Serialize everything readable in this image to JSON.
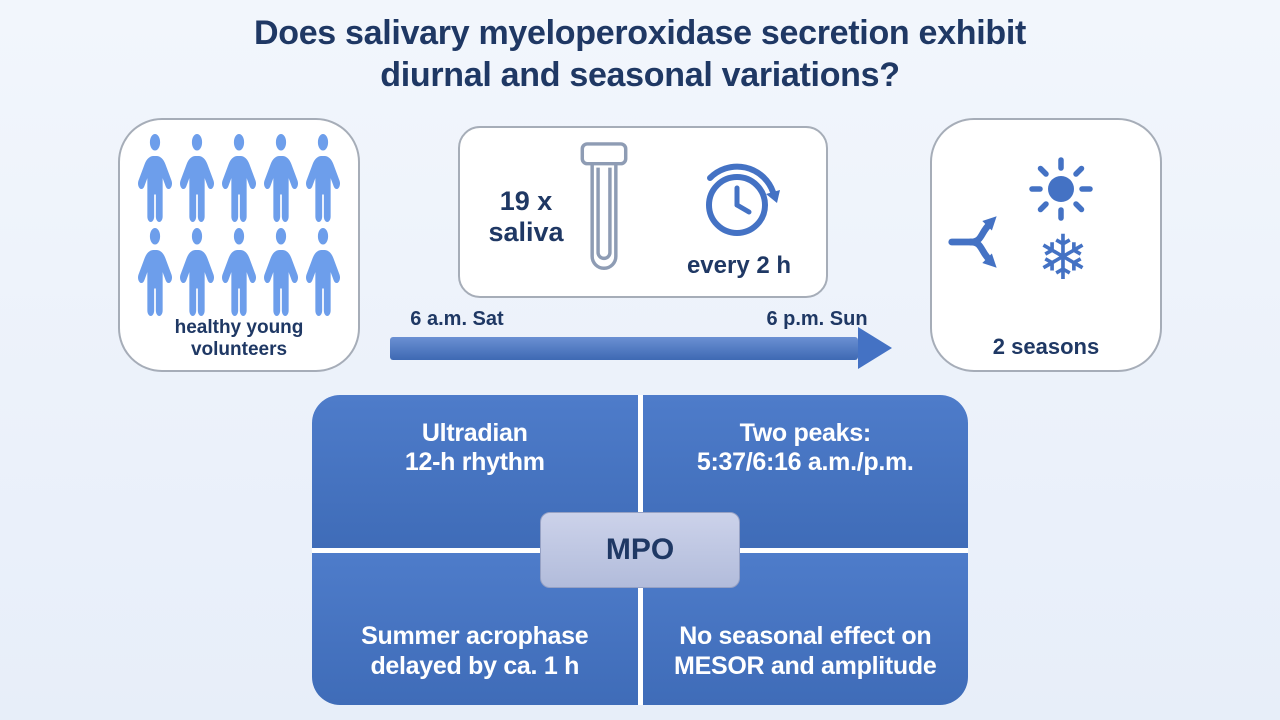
{
  "colors": {
    "navy": "#1f3864",
    "blue": "#4472c4",
    "person_blue": "#6d9eeb",
    "panel_border": "#a6adb8",
    "tube_gray": "#8e9cb4",
    "mpo_fill": "#bfc7e2"
  },
  "title": {
    "line1": "Does salivary myeloperoxidase secretion exhibit",
    "line2": "diurnal and seasonal variations?"
  },
  "panels": {
    "volunteers": {
      "person_count": 10,
      "caption": "healthy young\nvolunteers",
      "icon": "person-icon"
    },
    "sampling": {
      "count_label": "19 x\nsaliva",
      "interval_label": "every 2 h",
      "icons": [
        "test-tube-icon",
        "clock-cycle-icon"
      ]
    },
    "seasons": {
      "caption": "2 seasons",
      "snowflake_glyph": "❄",
      "icons": [
        "split-arrows-icon",
        "sun-icon",
        "snowflake-icon"
      ]
    }
  },
  "timeline": {
    "start_label": "6 a.m. Sat",
    "end_label": "6 p.m. Sun",
    "icon": "right-arrow"
  },
  "results": {
    "center_label": "MPO",
    "top_left": "Ultradian\n12-h rhythm",
    "top_right": "Two peaks:\n5:37/6:16 a.m./p.m.",
    "bottom_left": "Summer acrophase\ndelayed by ca. 1 h",
    "bottom_right": "No seasonal effect on\nMESOR and amplitude"
  }
}
